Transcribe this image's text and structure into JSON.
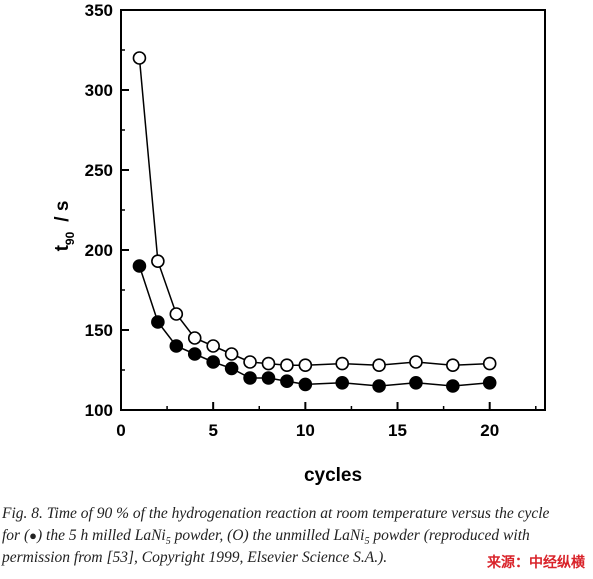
{
  "chart_data": {
    "type": "line",
    "title": "",
    "xlabel": "cycles",
    "ylabel_main": "t",
    "ylabel_sub": "90",
    "ylabel_unit": "/ s",
    "xlim": [
      0,
      23
    ],
    "ylim": [
      100,
      350
    ],
    "x_ticks": [
      0,
      5,
      10,
      15,
      20
    ],
    "y_ticks": [
      100,
      150,
      200,
      250,
      300,
      350
    ],
    "series": [
      {
        "marker": "open-circle",
        "x": [
          1,
          2,
          3,
          4,
          5,
          6,
          7,
          8,
          9,
          10,
          12,
          14,
          16,
          18,
          20
        ],
        "y": [
          320,
          193,
          160,
          145,
          140,
          135,
          130,
          129,
          128,
          128,
          129,
          128,
          130,
          128,
          129
        ]
      },
      {
        "marker": "filled-circle",
        "x": [
          1,
          2,
          3,
          4,
          5,
          6,
          7,
          8,
          9,
          10,
          12,
          14,
          16,
          18,
          20
        ],
        "y": [
          190,
          155,
          140,
          135,
          130,
          126,
          120,
          120,
          118,
          116,
          117,
          115,
          117,
          115,
          117
        ]
      }
    ],
    "grid": false,
    "legend": "none"
  },
  "caption": {
    "line1": "Fig. 8. Time of 90 % of the hydrogenation reaction at room temperature versus the cycle",
    "line2_a": "for (",
    "line2_b": ") the 5 h milled LaNi",
    "line2_c": "5",
    "line2_d": " powder, (O) the unmilled LaNi",
    "line2_e": "5",
    "line2_f": " powder (reproduced with",
    "line3": "permission from [53], Copyright 1999, Elsevier Science S.A.)."
  },
  "source_label": "来源：中经纵横"
}
